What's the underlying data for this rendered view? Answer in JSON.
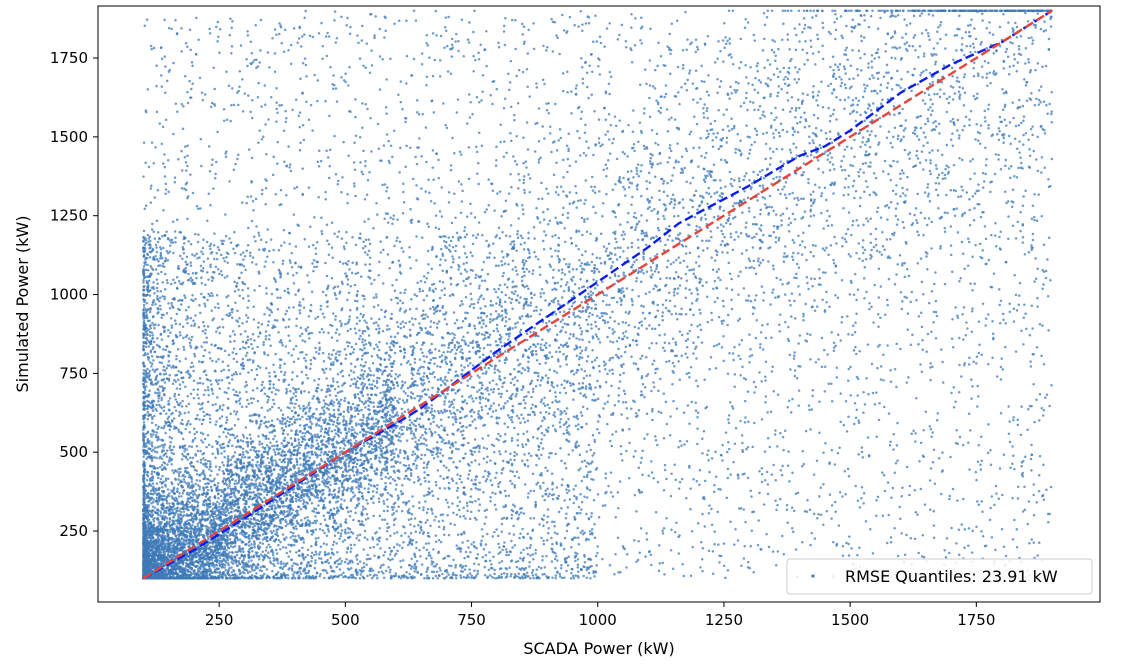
{
  "chart_data": {
    "type": "scatter",
    "xlabel": "SCADA Power (kW)",
    "ylabel": "Simulated Power (kW)",
    "xlim": [
      10,
      1995
    ],
    "ylim": [
      25,
      1915
    ],
    "xticks": [
      250,
      500,
      750,
      1000,
      1250,
      1500,
      1750
    ],
    "yticks": [
      250,
      500,
      750,
      1000,
      1250,
      1500,
      1750
    ],
    "grid": false,
    "legend": {
      "position": "bottom-right",
      "label": "RMSE Quantiles: 23.91 kW"
    },
    "colors": {
      "scatter": "#3d7ab7",
      "quantile_line": "#0b1ef0",
      "reference_line": "#e8443a"
    },
    "scatter_description": "approx. 16000 points, dense near (100–500, 100–600), spread over full range 100–1900 on both axes",
    "quantile_line": {
      "name": "Quantiles",
      "style": "dashed",
      "x": [
        100,
        200,
        300,
        400,
        500,
        600,
        650,
        700,
        800,
        900,
        1000,
        1100,
        1160,
        1200,
        1300,
        1400,
        1450,
        1500,
        1600,
        1700,
        1800,
        1900
      ],
      "y": [
        100,
        190,
        290,
        395,
        500,
        590,
        640,
        700,
        820,
        930,
        1040,
        1150,
        1225,
        1260,
        1345,
        1440,
        1470,
        1520,
        1640,
        1730,
        1800,
        1900
      ]
    },
    "reference_line": {
      "name": "Identity",
      "style": "dashed",
      "x": [
        100,
        1900
      ],
      "y": [
        100,
        1900
      ]
    }
  }
}
